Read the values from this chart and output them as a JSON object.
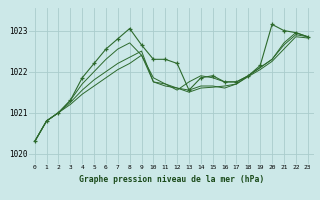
{
  "title": "Graphe pression niveau de la mer (hPa)",
  "bg_color": "#cce8e8",
  "grid_color": "#aad4d4",
  "line_color": "#2d6a2d",
  "marker_color": "#2d6a2d",
  "xlim": [
    -0.5,
    23.5
  ],
  "ylim": [
    1019.75,
    1023.55
  ],
  "yticks": [
    1020,
    1021,
    1022,
    1023
  ],
  "xticks": [
    0,
    1,
    2,
    3,
    4,
    5,
    6,
    7,
    8,
    9,
    10,
    11,
    12,
    13,
    14,
    15,
    16,
    17,
    18,
    19,
    20,
    21,
    22,
    23
  ],
  "series": [
    {
      "x": [
        0,
        1,
        2,
        3,
        4,
        5,
        6,
        7,
        8,
        9,
        10,
        11,
        12,
        13,
        14,
        15,
        16,
        17,
        18,
        19,
        20,
        21,
        22,
        23
      ],
      "y": [
        1020.3,
        1020.8,
        1021.0,
        1021.3,
        1021.85,
        1022.2,
        1022.55,
        1022.8,
        1023.05,
        1022.65,
        1022.3,
        1022.3,
        1022.2,
        1021.55,
        1021.85,
        1021.9,
        1021.75,
        1021.75,
        1021.9,
        1022.15,
        1023.15,
        1023.0,
        1022.95,
        1022.85
      ],
      "has_markers": true
    },
    {
      "x": [
        0,
        1,
        2,
        3,
        4,
        5,
        6,
        7,
        8,
        9,
        10,
        11,
        12,
        13,
        14,
        15,
        16,
        17,
        18,
        19,
        20,
        21,
        22,
        23
      ],
      "y": [
        1020.3,
        1020.8,
        1021.0,
        1021.3,
        1021.7,
        1022.0,
        1022.3,
        1022.55,
        1022.7,
        1022.4,
        1021.85,
        1021.7,
        1021.55,
        1021.75,
        1021.9,
        1021.85,
        1021.75,
        1021.75,
        1021.9,
        1022.1,
        1022.3,
        1022.7,
        1022.95,
        1022.85
      ],
      "has_markers": false
    },
    {
      "x": [
        0,
        1,
        2,
        3,
        4,
        5,
        6,
        7,
        8,
        9,
        10,
        11,
        12,
        13,
        14,
        15,
        16,
        17,
        18,
        19,
        20,
        21,
        22,
        23
      ],
      "y": [
        1020.3,
        1020.8,
        1021.0,
        1021.25,
        1021.55,
        1021.8,
        1022.0,
        1022.2,
        1022.35,
        1022.5,
        1021.75,
        1021.7,
        1021.6,
        1021.55,
        1021.65,
        1021.65,
        1021.6,
        1021.7,
        1021.9,
        1022.1,
        1022.3,
        1022.65,
        1022.9,
        1022.85
      ],
      "has_markers": false
    },
    {
      "x": [
        0,
        1,
        2,
        3,
        4,
        5,
        6,
        7,
        8,
        9,
        10,
        11,
        12,
        13,
        14,
        15,
        16,
        17,
        18,
        19,
        20,
        21,
        22,
        23
      ],
      "y": [
        1020.3,
        1020.8,
        1021.0,
        1021.2,
        1021.45,
        1021.65,
        1021.85,
        1022.05,
        1022.2,
        1022.4,
        1021.75,
        1021.65,
        1021.6,
        1021.5,
        1021.6,
        1021.62,
        1021.65,
        1021.7,
        1021.88,
        1022.05,
        1022.25,
        1022.55,
        1022.85,
        1022.82
      ],
      "has_markers": false
    }
  ]
}
